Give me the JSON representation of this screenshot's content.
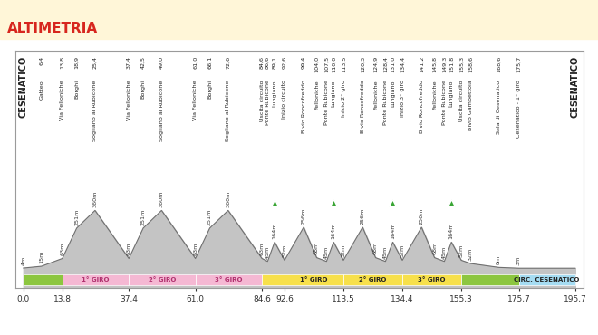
{
  "chart_data": {
    "type": "area",
    "title": "ALTIMETRIA",
    "color": "#c4c4c4",
    "x": [
      0,
      6.4,
      13.8,
      18.9,
      25.4,
      37.4,
      42.5,
      49.0,
      61.0,
      66.1,
      72.6,
      84.6,
      86.6,
      89.1,
      92.6,
      99.4,
      104.0,
      107.5,
      110.0,
      113.5,
      120.3,
      124.9,
      128.4,
      131.0,
      134.4,
      141.2,
      145.8,
      149.3,
      151.8,
      155.3,
      158.6,
      168.6,
      175.7,
      195.7
    ],
    "values": [
      4,
      15,
      63,
      251,
      360,
      63,
      251,
      360,
      63,
      251,
      360,
      63,
      45,
      164,
      52,
      256,
      68,
      45,
      164,
      52,
      256,
      68,
      45,
      164,
      52,
      256,
      68,
      45,
      164,
      52,
      32,
      8,
      3,
      3
    ],
    "value_labels": [
      "4m",
      "15m",
      "63m",
      "251m",
      "360m",
      "63m",
      "251m",
      "360m",
      "63m",
      "251m",
      "360m",
      "63m",
      "45m",
      "164m",
      "52m",
      "256m",
      "68m",
      "45m",
      "164m",
      "52m",
      "256m",
      "68m",
      "45m",
      "164m",
      "52m",
      "256m",
      "68m",
      "45m",
      "164m",
      "52m",
      "32m",
      "8m",
      "3m",
      null
    ],
    "data_labels": true,
    "xlim": [
      -3,
      198.5
    ],
    "ylim": [
      -120,
      1350
    ],
    "xticks": [
      {
        "value": 0,
        "label": "0,0"
      },
      {
        "value": 13.8,
        "label": "13,8"
      },
      {
        "value": 37.4,
        "label": "37,4"
      },
      {
        "value": 61.0,
        "label": "61,0"
      },
      {
        "value": 84.6,
        "label": "84,6"
      },
      {
        "value": 92.6,
        "label": "92,6"
      },
      {
        "value": 113.5,
        "label": "113,5"
      },
      {
        "value": 134.4,
        "label": "134,4"
      },
      {
        "value": 155.3,
        "label": "155,3"
      },
      {
        "value": 175.7,
        "label": "175,7"
      },
      {
        "value": 195.7,
        "label": "195,7"
      }
    ],
    "tick_labels": "x",
    "places": [
      {
        "x": 0,
        "name": "CESENATICO"
      },
      {
        "x": 6.4,
        "label": "6,4",
        "name": "Gatteo"
      },
      {
        "x": 13.8,
        "label": "13,8",
        "name": "Via Felloniche"
      },
      {
        "x": 18.9,
        "label": "18,9",
        "name": "Borghi"
      },
      {
        "x": 25.4,
        "label": "25,4",
        "name": "Sogliano al Rubicone"
      },
      {
        "x": 37.4,
        "label": "37,4",
        "name": "Via Felloniche"
      },
      {
        "x": 42.5,
        "label": "42,5",
        "name": "Borghi"
      },
      {
        "x": 49.0,
        "label": "49,0",
        "name": "Sogliano al Rubicone"
      },
      {
        "x": 61.0,
        "label": "61,0",
        "name": "Via Felloniche"
      },
      {
        "x": 66.1,
        "label": "66,1",
        "name": "Borghi"
      },
      {
        "x": 72.6,
        "label": "72,6",
        "name": "Sogliano al Rubicone"
      },
      {
        "x": 84.6,
        "label": "84,6",
        "name": "Uscita circuito"
      },
      {
        "x": 86.6,
        "label": "86,6",
        "name": "Ponte Rubicone"
      },
      {
        "x": 89.1,
        "label": "89,1",
        "name": "Lungiano"
      },
      {
        "x": 92.6,
        "label": "92,6",
        "name": "Inizio circuito"
      },
      {
        "x": 99.4,
        "label": "99,4",
        "name": "Bivio Roncofreddo"
      },
      {
        "x": 104.0,
        "label": "104,0",
        "name": "Felloniche"
      },
      {
        "x": 107.5,
        "label": "107,5",
        "name": "Ponte Rubicone"
      },
      {
        "x": 110.0,
        "label": "110,0",
        "name": "Lungiano"
      },
      {
        "x": 113.5,
        "label": "113,5",
        "name": "Inizio 2° giro"
      },
      {
        "x": 120.3,
        "label": "120,3",
        "name": "Bivio Roncofreddo"
      },
      {
        "x": 124.9,
        "label": "124,9",
        "name": "Felloniche"
      },
      {
        "x": 128.4,
        "label": "128,4",
        "name": "Ponte Rubicone"
      },
      {
        "x": 131.0,
        "label": "131,0",
        "name": "Lungiano"
      },
      {
        "x": 134.4,
        "label": "134,4",
        "name": "Inizio 3° giro"
      },
      {
        "x": 141.2,
        "label": "141,2",
        "name": "Bivio Roncofreddo"
      },
      {
        "x": 145.8,
        "label": "145,8",
        "name": "Felloniche"
      },
      {
        "x": 149.3,
        "label": "149,3",
        "name": "Ponte Rubicone"
      },
      {
        "x": 151.8,
        "label": "151,8",
        "name": "Lungiano"
      },
      {
        "x": 155.3,
        "label": "155,3",
        "name": "Uscita circuito"
      },
      {
        "x": 158.6,
        "label": "158,6",
        "name": "Bivio Gambettola"
      },
      {
        "x": 168.6,
        "label": "168,6",
        "name": "Sala di Cesenatico"
      },
      {
        "x": 175.7,
        "label": "175,7",
        "name": "Cesenatico - 1° giro"
      },
      {
        "x": 195.7,
        "name": "CESENATICO"
      }
    ],
    "gpm": [
      89.1,
      110.0,
      131.0,
      151.8
    ],
    "segments": [
      {
        "start": 0,
        "end": 13.8,
        "color": "#8cc63f"
      },
      {
        "start": 13.8,
        "end": 37.4,
        "color": "#f5b8d3",
        "label": "1° GIRO"
      },
      {
        "start": 37.4,
        "end": 61.0,
        "color": "#f5b8d3",
        "label": "2° GIRO"
      },
      {
        "start": 61.0,
        "end": 84.6,
        "color": "#f5b8d3",
        "label": "3° GIRO"
      },
      {
        "start": 84.6,
        "end": 92.6,
        "color": "#f7e04b"
      },
      {
        "start": 92.6,
        "end": 113.5,
        "color": "#f7e04b",
        "label": "1° GIRO"
      },
      {
        "start": 113.5,
        "end": 134.4,
        "color": "#f7e04b",
        "label": "2° GIRO"
      },
      {
        "start": 134.4,
        "end": 155.3,
        "color": "#f7e04b",
        "label": "3° GIRO"
      },
      {
        "start": 155.3,
        "end": 175.7,
        "color": "#8cc63f"
      },
      {
        "start": 175.7,
        "end": 195.7,
        "color": "#a5dcf2",
        "label": "CIRC. CESENATICO"
      }
    ]
  }
}
